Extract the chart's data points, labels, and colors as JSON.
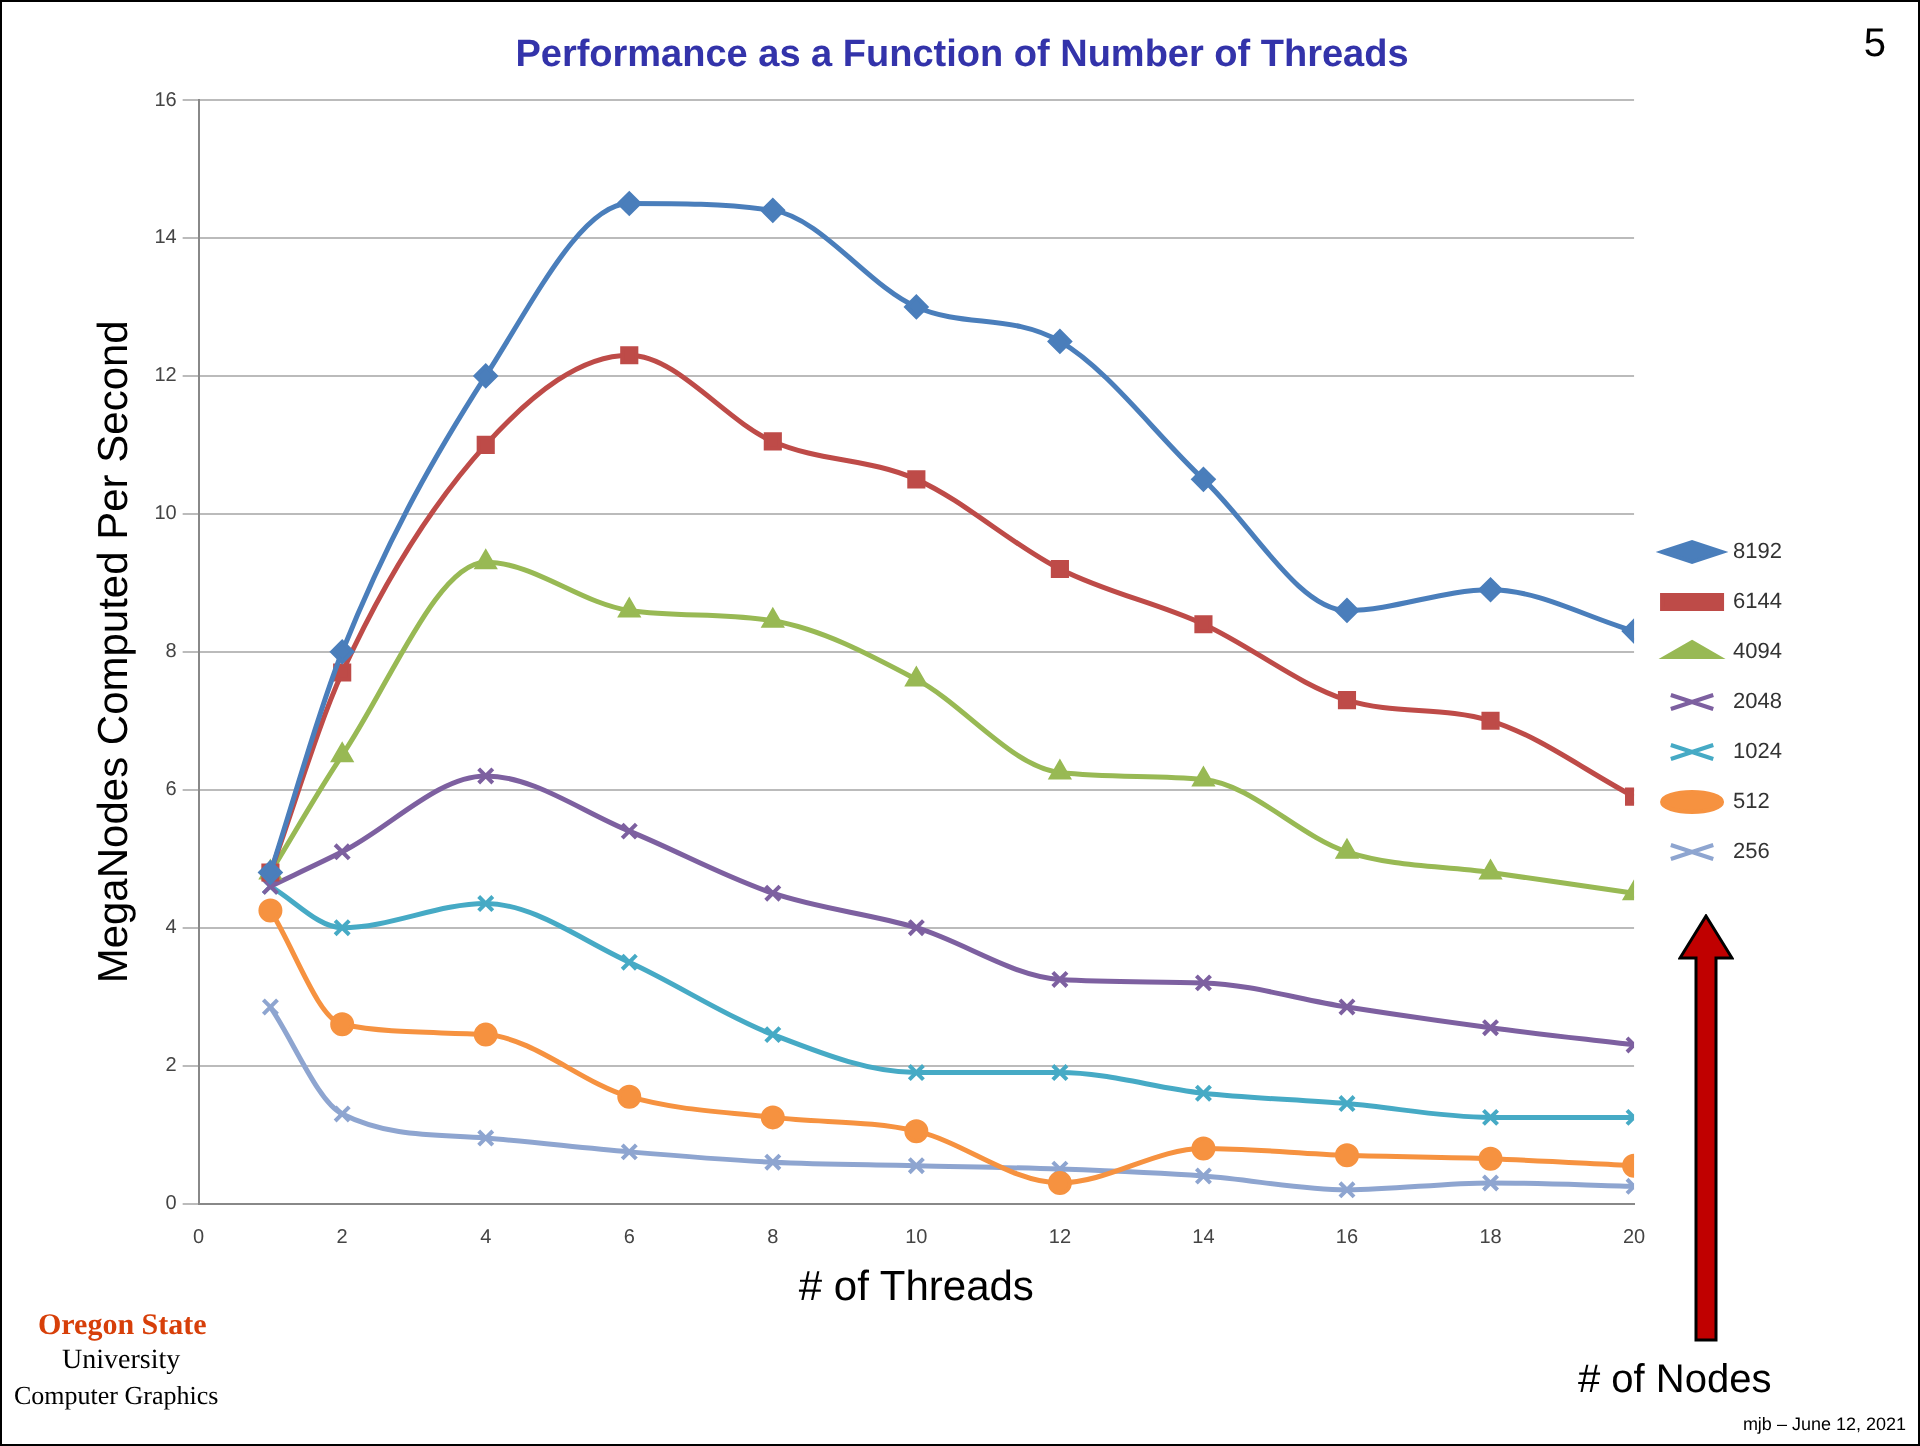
{
  "chart_data": {
    "type": "line",
    "title": "Performance as a Function of Number of Threads",
    "xlabel": "# of Threads",
    "ylabel": "MegaNodes Computed Per Second",
    "x": [
      1,
      2,
      4,
      6,
      8,
      10,
      12,
      14,
      16,
      18,
      20
    ],
    "xlim": [
      0,
      20
    ],
    "xticks": [
      0,
      2,
      4,
      6,
      8,
      10,
      12,
      14,
      16,
      18,
      20
    ],
    "ylim": [
      0,
      16
    ],
    "yticks": [
      0,
      2,
      4,
      6,
      8,
      10,
      12,
      14,
      16
    ],
    "grid": "y",
    "legend": "right",
    "series": [
      {
        "name": "8192",
        "color": "#4a7ebb",
        "marker": "diamond",
        "values": [
          4.8,
          8.0,
          12.0,
          14.5,
          14.4,
          13.0,
          12.5,
          10.5,
          8.6,
          8.9,
          8.3
        ]
      },
      {
        "name": "6144",
        "color": "#be4b48",
        "marker": "square",
        "values": [
          4.8,
          7.7,
          11.0,
          12.3,
          11.05,
          10.5,
          9.2,
          8.4,
          7.3,
          7.0,
          5.9
        ]
      },
      {
        "name": "4094",
        "color": "#98b954",
        "marker": "triangle",
        "values": [
          4.8,
          6.5,
          9.3,
          8.6,
          8.45,
          7.6,
          6.25,
          6.15,
          5.1,
          4.8,
          4.5
        ]
      },
      {
        "name": "2048",
        "color": "#7d60a0",
        "marker": "cross",
        "values": [
          4.6,
          5.1,
          6.2,
          5.4,
          4.5,
          4.0,
          3.25,
          3.2,
          2.85,
          2.55,
          2.3
        ]
      },
      {
        "name": "1024",
        "color": "#46aac5",
        "marker": "cross",
        "values": [
          4.6,
          4.0,
          4.35,
          3.5,
          2.45,
          1.9,
          1.9,
          1.6,
          1.45,
          1.25,
          1.25
        ]
      },
      {
        "name": "512",
        "color": "#f69240",
        "marker": "circle",
        "values": [
          4.25,
          2.6,
          2.45,
          1.55,
          1.25,
          1.05,
          0.3,
          0.8,
          0.7,
          0.65,
          0.55
        ]
      },
      {
        "name": "256",
        "color": "#8ea5d0",
        "marker": "cross",
        "values": [
          2.85,
          1.3,
          0.95,
          0.75,
          0.6,
          0.55,
          0.5,
          0.4,
          0.2,
          0.3,
          0.25
        ]
      }
    ],
    "annotations": [
      "5",
      "# of Nodes",
      "Oregon State",
      "University",
      "Computer Graphics",
      "mjb – June 12, 2021"
    ]
  }
}
